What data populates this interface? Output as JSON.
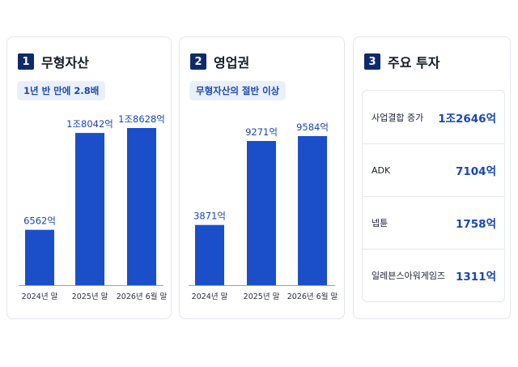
{
  "panels": [
    {
      "number": "1",
      "title": "무형자산",
      "pill": "1년 반 만에 2.8배"
    },
    {
      "number": "2",
      "title": "영업권",
      "pill": "무형자산의 절반 이상"
    },
    {
      "number": "3",
      "title": "주요 투자"
    }
  ],
  "investments": [
    {
      "label": "사업결합 증가",
      "value": "1조2646억"
    },
    {
      "label": "ADK",
      "value": "7104억"
    },
    {
      "label": "넵튠",
      "value": "1758억"
    },
    {
      "label": "일레븐스아워게임즈",
      "value": "1311억"
    }
  ],
  "colors": {
    "bar": "#1a4fc9",
    "label": "#1747b5",
    "badge": "#0f2a6b"
  },
  "chart_data": [
    {
      "type": "bar",
      "title": "무형자산",
      "categories": [
        "2024년 말",
        "2025년 말",
        "2026년 6월 말"
      ],
      "values": [
        6562,
        18042,
        18628
      ],
      "value_labels": [
        "6562억",
        "1조8042억",
        "1조8628억"
      ],
      "unit": "억",
      "ylim": [
        0,
        18628
      ],
      "grid": false
    },
    {
      "type": "bar",
      "title": "영업권",
      "categories": [
        "2024년 말",
        "2025년 말",
        "2026년 6월 말"
      ],
      "values": [
        3871,
        9271,
        9584
      ],
      "value_labels": [
        "3871억",
        "9271억",
        "9584억"
      ],
      "unit": "억",
      "ylim": [
        0,
        9584
      ],
      "grid": false
    }
  ]
}
